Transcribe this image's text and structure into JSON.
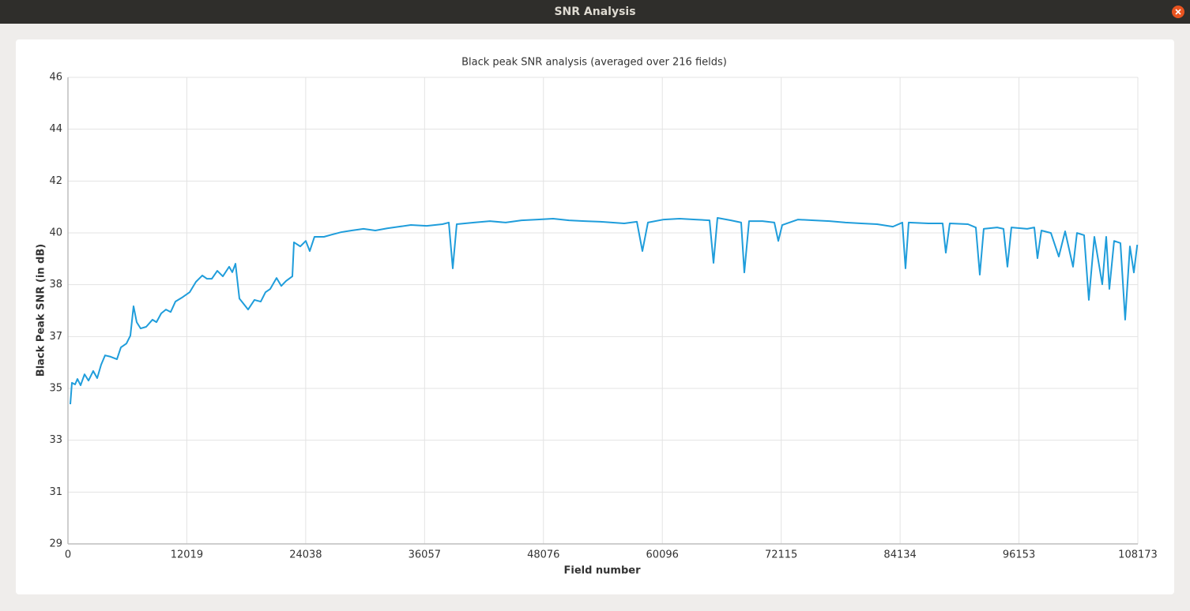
{
  "window_title": "SNR Analysis",
  "chart_data": {
    "type": "line",
    "title": "Black peak SNR analysis (averaged over 216 fields)",
    "x_label": "Field number",
    "y_label": "Black Peak SNR (in dB)",
    "color": "#1f9ddb",
    "grid": true,
    "xlim": [
      0,
      108173
    ],
    "xticks": [
      0,
      12019,
      24038,
      36057,
      48076,
      60096,
      72115,
      84134,
      96153,
      108173
    ],
    "ylim": [
      29,
      46
    ],
    "yticks": [
      29,
      {
        "value": 30.889,
        "label": "31"
      },
      {
        "value": 32.778,
        "label": "33"
      },
      {
        "value": 34.667,
        "label": "35"
      },
      {
        "value": 36.556,
        "label": "37"
      },
      {
        "value": 38.444,
        "label": "38"
      },
      {
        "value": 40.333,
        "label": "40"
      },
      {
        "value": 42.222,
        "label": "42"
      },
      {
        "value": 44.111,
        "label": "44"
      },
      46
    ],
    "x": [
      240,
      400,
      719,
      959,
      1278,
      1678,
      2077,
      2556,
      2956,
      3355,
      3754,
      4314,
      4953,
      5352,
      5912,
      6311,
      6631,
      6950,
      7350,
      7909,
      8548,
      8948,
      9427,
      9906,
      10386,
      10865,
      11504,
      12303,
      12942,
      13581,
      14061,
      14540,
      15099,
      15659,
      16298,
      16617,
      16937,
      17336,
      18215,
      18854,
      19493,
      19972,
      20452,
      21091,
      21570,
      22050,
      22689,
      22849,
      23488,
      24047,
      24446,
      24926,
      25884,
      26683,
      27642,
      28680,
      29879,
      31077,
      32276,
      33474,
      34672,
      36270,
      37868,
      38507,
      38906,
      39306,
      41063,
      42661,
      44259,
      45857,
      47454,
      49052,
      50650,
      52248,
      53846,
      56242,
      57521,
      58080,
      58639,
      60236,
      61834,
      63432,
      64870,
      65270,
      65669,
      67027,
      68066,
      68385,
      68864,
      70222,
      71421,
      71820,
      72219,
      73817,
      75415,
      77013,
      78611,
      80209,
      81806,
      83404,
      84363,
      84682,
      85002,
      86999,
      88437,
      88757,
      89156,
      90994,
      91793,
      92192,
      92592,
      93950,
      94589,
      94988,
      95388,
      96985,
      97704,
      98024,
      98423,
      99382,
      100181,
      100820,
      101619,
      102018,
      102737,
      103217,
      103776,
      104575,
      104974,
      105294,
      105773,
      106412,
      106891,
      107371,
      107770,
      108113
    ],
    "values": [
      34.09,
      34.87,
      34.81,
      35.01,
      34.78,
      35.18,
      34.95,
      35.3,
      35.04,
      35.53,
      35.87,
      35.82,
      35.73,
      36.16,
      36.3,
      36.59,
      37.66,
      37.08,
      36.85,
      36.91,
      37.17,
      37.08,
      37.4,
      37.54,
      37.45,
      37.83,
      37.97,
      38.17,
      38.55,
      38.78,
      38.66,
      38.66,
      38.95,
      38.75,
      39.1,
      38.9,
      39.21,
      37.94,
      37.54,
      37.89,
      37.83,
      38.17,
      38.29,
      38.69,
      38.4,
      38.58,
      38.75,
      39.99,
      39.84,
      40.04,
      39.67,
      40.19,
      40.19,
      40.27,
      40.36,
      40.42,
      40.48,
      40.42,
      40.5,
      40.56,
      40.62,
      40.59,
      40.65,
      40.71,
      39.04,
      40.65,
      40.71,
      40.76,
      40.71,
      40.79,
      40.82,
      40.85,
      40.79,
      40.76,
      40.74,
      40.68,
      40.74,
      39.67,
      40.71,
      40.82,
      40.85,
      40.82,
      40.79,
      39.24,
      40.88,
      40.79,
      40.71,
      38.89,
      40.76,
      40.76,
      40.71,
      40.04,
      40.62,
      40.82,
      40.79,
      40.76,
      40.71,
      40.68,
      40.65,
      40.56,
      40.71,
      39.04,
      40.71,
      40.68,
      40.68,
      39.61,
      40.68,
      40.65,
      40.53,
      38.81,
      40.48,
      40.53,
      40.48,
      39.1,
      40.53,
      40.48,
      40.53,
      39.41,
      40.42,
      40.33,
      39.47,
      40.39,
      39.1,
      40.33,
      40.25,
      37.89,
      40.19,
      38.46,
      40.19,
      38.29,
      40.04,
      39.96,
      37.17,
      39.84,
      38.89,
      39.9
    ]
  }
}
